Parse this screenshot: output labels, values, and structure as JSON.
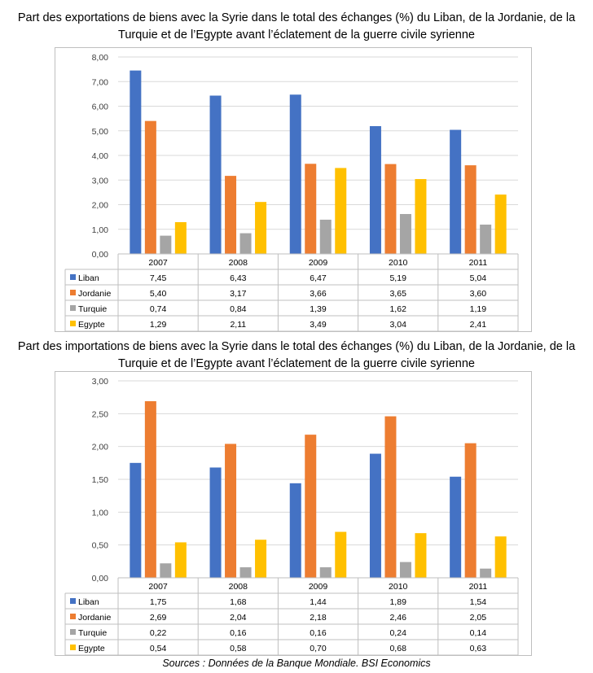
{
  "titles": {
    "exports": "Part des exportations de biens avec la Syrie dans le total des échanges (%) du Liban, de la Jordanie, de la Turquie et de l’Egypte avant l’éclatement de la guerre civile syrienne",
    "imports": "Part des importations de biens avec la Syrie dans le total des échanges (%) du Liban, de la Jordanie, de la Turquie et de l’Egypte avant l’éclatement de la guerre civile syrienne"
  },
  "source": "Sources : Données de la Banque Mondiale. BSI Economics",
  "chart_data": [
    {
      "id": "exports",
      "type": "bar",
      "title": "Part des exportations de biens avec la Syrie dans le total des échanges (%) du Liban, de la Jordanie, de la Turquie et de l’Egypte avant l’éclatement de la guerre civile syrienne",
      "categories": [
        "2007",
        "2008",
        "2009",
        "2010",
        "2011"
      ],
      "ylim": [
        0,
        8
      ],
      "yticks": [
        "0,00",
        "1,00",
        "2,00",
        "3,00",
        "4,00",
        "5,00",
        "6,00",
        "7,00",
        "8,00"
      ],
      "grid": true,
      "legend": "data-table",
      "series": [
        {
          "name": "Liban",
          "color": "#4472C4",
          "values": [
            7.45,
            6.43,
            6.47,
            5.19,
            5.04
          ],
          "labels": [
            "7,45",
            "6,43",
            "6,47",
            "5,19",
            "5,04"
          ]
        },
        {
          "name": "Jordanie",
          "color": "#ED7D31",
          "values": [
            5.4,
            3.17,
            3.66,
            3.65,
            3.6
          ],
          "labels": [
            "5,40",
            "3,17",
            "3,66",
            "3,65",
            "3,60"
          ]
        },
        {
          "name": "Turquie",
          "color": "#A5A5A5",
          "values": [
            0.74,
            0.84,
            1.39,
            1.62,
            1.19
          ],
          "labels": [
            "0,74",
            "0,84",
            "1,39",
            "1,62",
            "1,19"
          ]
        },
        {
          "name": "Egypte",
          "color": "#FFC000",
          "values": [
            1.29,
            2.11,
            3.49,
            3.04,
            2.41
          ],
          "labels": [
            "1,29",
            "2,11",
            "3,49",
            "3,04",
            "2,41"
          ]
        }
      ]
    },
    {
      "id": "imports",
      "type": "bar",
      "title": "Part des importations de biens avec la Syrie dans le total des échanges (%) du Liban, de la Jordanie, de la Turquie et de l’Egypte avant l’éclatement de la guerre civile syrienne",
      "categories": [
        "2007",
        "2008",
        "2009",
        "2010",
        "2011"
      ],
      "ylim": [
        0,
        3
      ],
      "yticks": [
        "0,00",
        "0,50",
        "1,00",
        "1,50",
        "2,00",
        "2,50",
        "3,00"
      ],
      "grid": true,
      "legend": "data-table",
      "series": [
        {
          "name": "Liban",
          "color": "#4472C4",
          "values": [
            1.75,
            1.68,
            1.44,
            1.89,
            1.54
          ],
          "labels": [
            "1,75",
            "1,68",
            "1,44",
            "1,89",
            "1,54"
          ]
        },
        {
          "name": "Jordanie",
          "color": "#ED7D31",
          "values": [
            2.69,
            2.04,
            2.18,
            2.46,
            2.05
          ],
          "labels": [
            "2,69",
            "2,04",
            "2,18",
            "2,46",
            "2,05"
          ]
        },
        {
          "name": "Turquie",
          "color": "#A5A5A5",
          "values": [
            0.22,
            0.16,
            0.16,
            0.24,
            0.14
          ],
          "labels": [
            "0,22",
            "0,16",
            "0,16",
            "0,24",
            "0,14"
          ]
        },
        {
          "name": "Egypte",
          "color": "#FFC000",
          "values": [
            0.54,
            0.58,
            0.7,
            0.68,
            0.63
          ],
          "labels": [
            "0,54",
            "0,58",
            "0,70",
            "0,68",
            "0,63"
          ]
        }
      ]
    }
  ]
}
